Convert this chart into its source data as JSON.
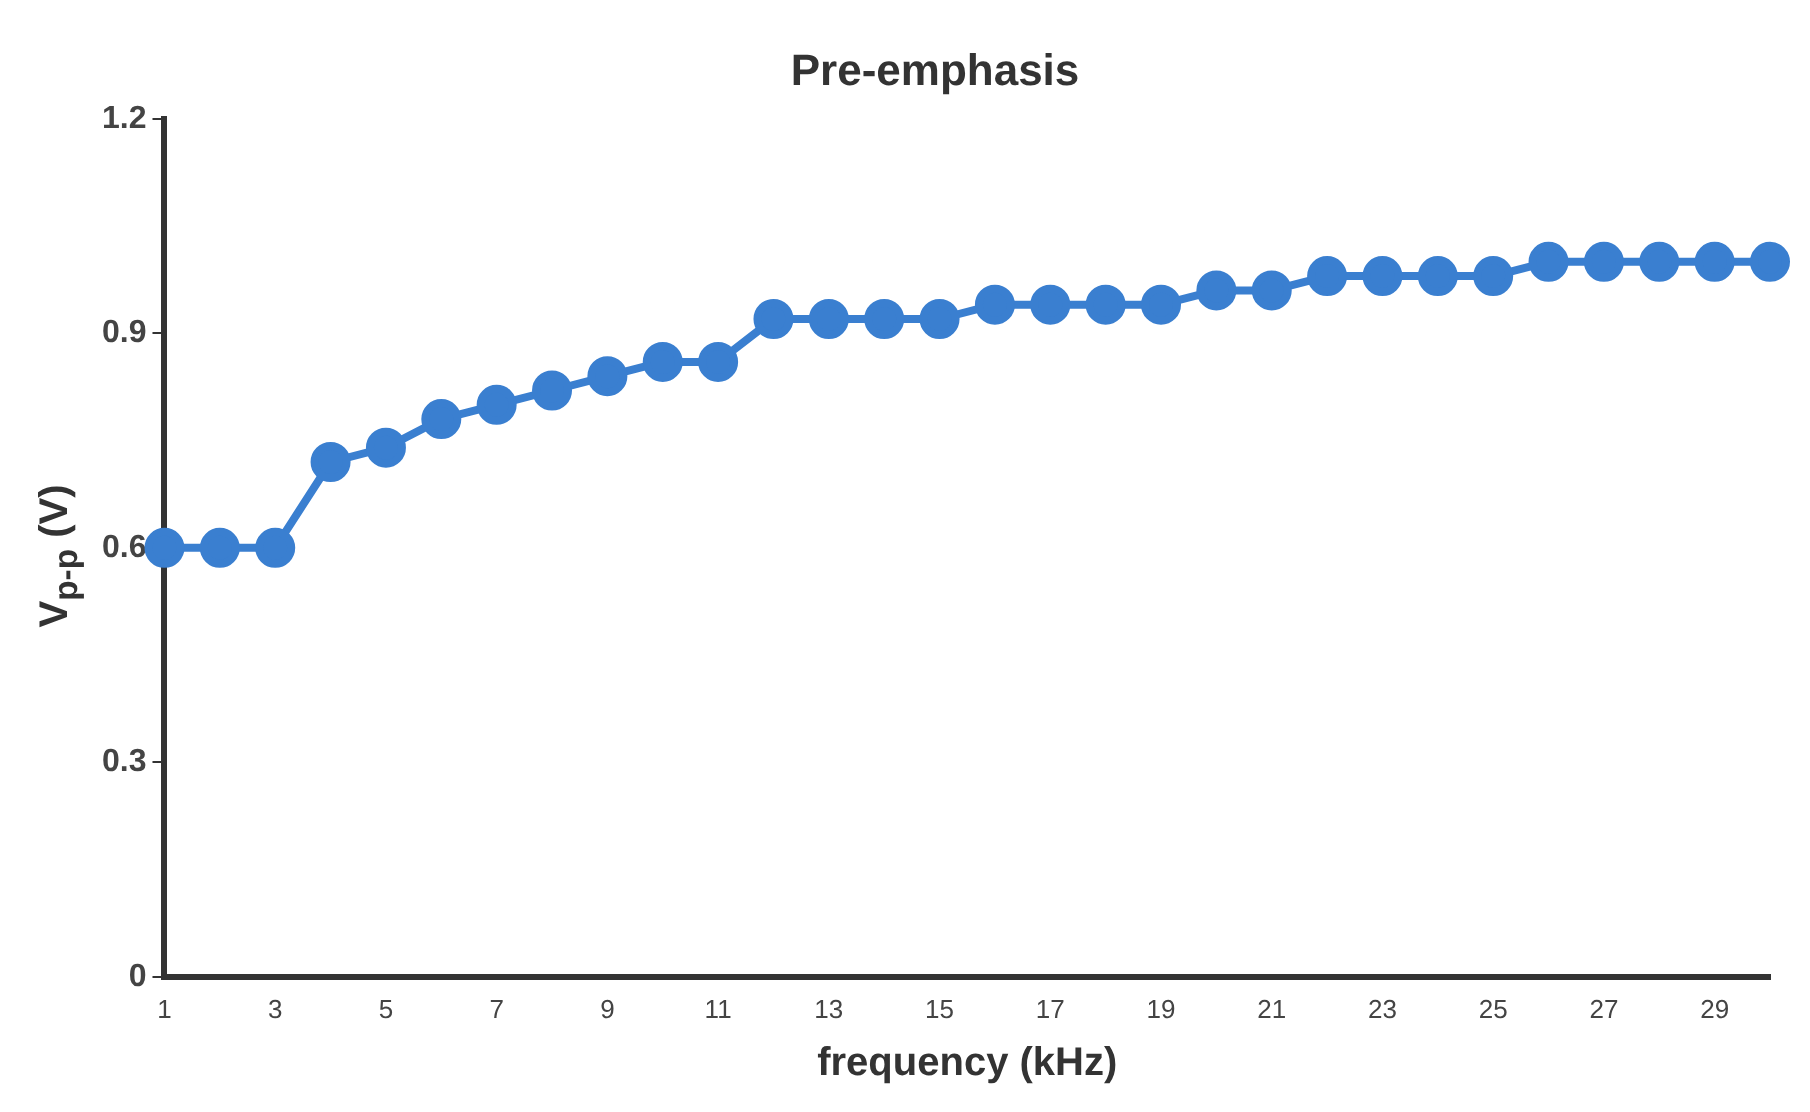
{
  "chart_data": {
    "type": "line",
    "title": "Pre-emphasis",
    "xlabel": "frequency (kHz)",
    "ylabel": "V$_{p-p}$ (V)",
    "x": [
      1,
      2,
      3,
      4,
      5,
      6,
      7,
      8,
      9,
      10,
      11,
      12,
      13,
      14,
      15,
      16,
      17,
      18,
      19,
      20,
      21,
      22,
      23,
      24,
      25,
      26,
      27,
      28,
      29,
      30
    ],
    "series": [
      {
        "color": "#3a7fd0",
        "values": [
          0.6,
          0.6,
          0.6,
          0.72,
          0.74,
          0.78,
          0.8,
          0.82,
          0.84,
          0.86,
          0.86,
          0.92,
          0.92,
          0.92,
          0.92,
          0.94,
          0.94,
          0.94,
          0.94,
          0.96,
          0.96,
          0.98,
          0.98,
          0.98,
          0.98,
          1.0,
          1.0,
          1.0,
          1.0,
          1.0
        ]
      }
    ],
    "xlim": [
      1,
      30
    ],
    "xticks": [
      1,
      3,
      5,
      7,
      9,
      11,
      13,
      15,
      17,
      19,
      21,
      23,
      25,
      27,
      29
    ],
    "ylim": [
      0,
      1.2
    ],
    "yticks": [
      0,
      0.3,
      0.6,
      0.9,
      1.2
    ],
    "grid": false,
    "legend": false,
    "marker": "circle",
    "line_style": "solid"
  }
}
